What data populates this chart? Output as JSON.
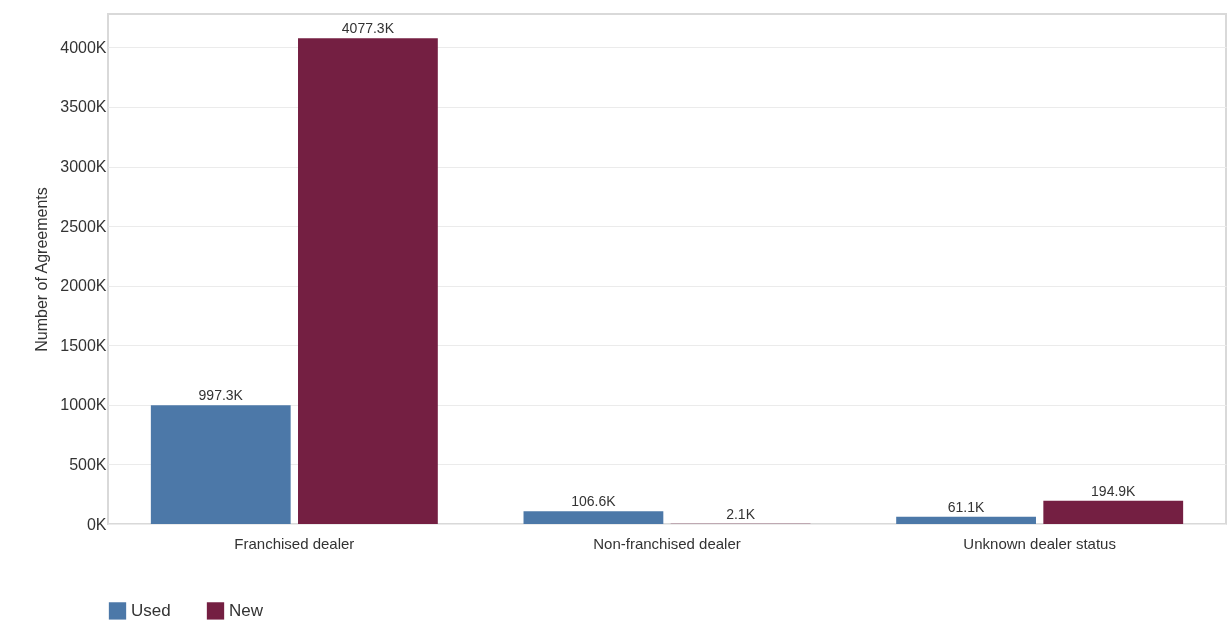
{
  "chart_data": {
    "type": "bar",
    "ylabel": "Number of Agreements",
    "categories": [
      "Franchised dealer",
      "Non-franchised dealer",
      "Unknown dealer status"
    ],
    "series": [
      {
        "name": "Used",
        "color": "#4c78a8",
        "values": [
          997.3,
          106.6,
          61.1
        ],
        "value_labels": [
          "997.3K",
          "106.6K",
          "61.1K"
        ]
      },
      {
        "name": "New",
        "color": "#741f42",
        "values": [
          4077.3,
          2.1,
          194.9
        ],
        "value_labels": [
          "4077.3K",
          "2.1K",
          "194.9K"
        ]
      }
    ],
    "ylim": [
      0,
      4280
    ],
    "yticks": [
      {
        "value": 0,
        "label": "0K"
      },
      {
        "value": 500,
        "label": "500K"
      },
      {
        "value": 1000,
        "label": "1000K"
      },
      {
        "value": 1500,
        "label": "1500K"
      },
      {
        "value": 2000,
        "label": "2000K"
      },
      {
        "value": 2500,
        "label": "2500K"
      },
      {
        "value": 3000,
        "label": "3000K"
      },
      {
        "value": 3500,
        "label": "3500K"
      },
      {
        "value": 4000,
        "label": "4000K"
      }
    ],
    "grid": "y",
    "legend": "bottom"
  }
}
